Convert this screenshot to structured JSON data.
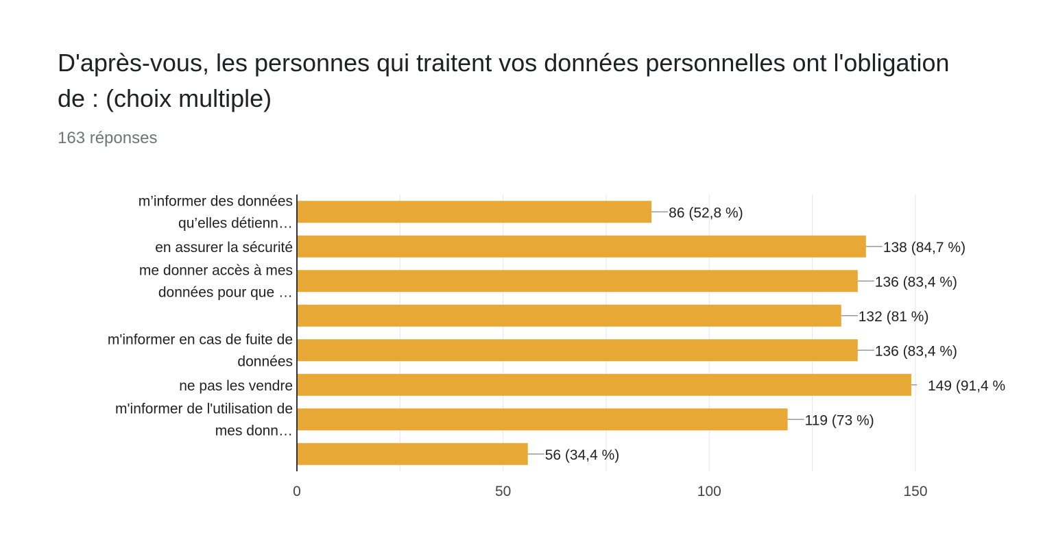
{
  "header": {
    "title": "D'après-vous, les personnes qui traitent vos données personnelles ont l'obligation de : (choix multiple)",
    "responses": "163 réponses"
  },
  "colors": {
    "bar": "#e8a835",
    "grid": "#e6e6e6",
    "axis": "#333333",
    "leader": "#999999"
  },
  "chart_data": {
    "type": "bar",
    "orientation": "horizontal",
    "xlim": [
      0,
      150
    ],
    "x_ticks": [
      0,
      50,
      100,
      150
    ],
    "grid": true,
    "categories": [
      [
        "m’informer des données",
        "qu’elles détienn…"
      ],
      [
        "en assurer la sécurité"
      ],
      [
        "me donner accès à mes",
        "données pour que …"
      ],
      [],
      [
        "m'informer en cas de fuite de",
        "données"
      ],
      [
        "ne pas les vendre"
      ],
      [
        "m'informer de l'utilisation de",
        "mes donn…"
      ],
      []
    ],
    "values": [
      86,
      138,
      136,
      132,
      136,
      149,
      119,
      56
    ],
    "data_labels": [
      "86 (52,8 %)",
      "138 (84,7 %)",
      "136 (83,4 %)",
      "132 (81 %)",
      "136 (83,4 %)",
      "149 (91,4 %",
      "119 (73 %)",
      "56 (34,4 %)"
    ]
  }
}
